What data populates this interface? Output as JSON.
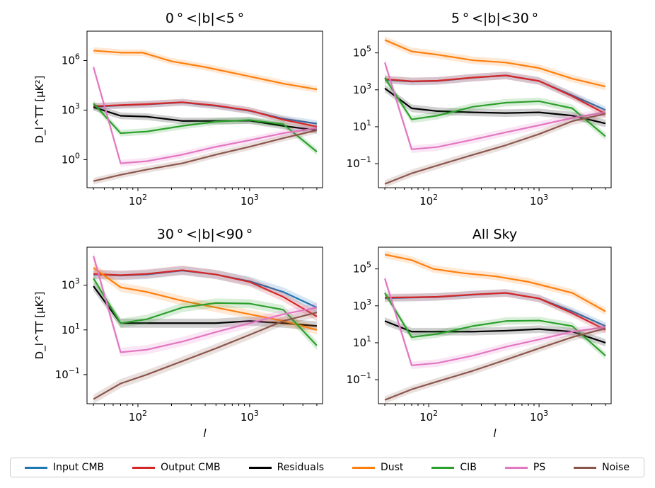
{
  "chart_data": [
    {
      "type": "line",
      "title": "0$^\\circ$<|b|<5$^\\circ$",
      "title_display": "0 ° <|b|<5 °",
      "xlabel": "",
      "ylabel": "D_l^TT [μK²]",
      "xscale": "log",
      "yscale": "log",
      "xlim": [
        35,
        4500
      ],
      "ylim": [
        0.02,
        60000000
      ],
      "xticks": [
        {
          "v": 100,
          "base": "10",
          "exp": "2"
        },
        {
          "v": 1000,
          "base": "10",
          "exp": "3"
        }
      ],
      "yticks": [
        {
          "v": 1,
          "base": "10",
          "exp": "0"
        },
        {
          "v": 1000,
          "base": "10",
          "exp": "3"
        },
        {
          "v": 1000000,
          "base": "10",
          "exp": "6"
        }
      ],
      "series": [
        {
          "name": "Input CMB",
          "x": [
            40,
            70,
            120,
            250,
            500,
            1000,
            2000,
            4000
          ],
          "y": [
            1600,
            1900,
            2200,
            2900,
            1800,
            900,
            300,
            150
          ]
        },
        {
          "name": "Output CMB",
          "x": [
            40,
            70,
            120,
            250,
            500,
            1000,
            2000,
            4000
          ],
          "y": [
            1700,
            2000,
            2300,
            3000,
            1900,
            950,
            260,
            100
          ]
        },
        {
          "name": "Residuals",
          "x": [
            40,
            70,
            120,
            250,
            500,
            1000,
            2000,
            4000
          ],
          "y": [
            1500,
            450,
            400,
            220,
            220,
            230,
            110,
            60
          ]
        },
        {
          "name": "Dust",
          "x": [
            40,
            70,
            110,
            200,
            400,
            800,
            2000,
            4000
          ],
          "y": [
            4000000,
            3000000,
            3000000,
            900000,
            400000,
            150000,
            40000,
            18000
          ]
        },
        {
          "name": "CIB",
          "x": [
            40,
            70,
            120,
            250,
            500,
            1000,
            2000,
            4000
          ],
          "y": [
            2500,
            40,
            50,
            110,
            200,
            250,
            140,
            3
          ]
        },
        {
          "name": "PS",
          "x": [
            40,
            70,
            120,
            250,
            500,
            1000,
            2000,
            4000
          ],
          "y": [
            400000,
            0.6,
            0.8,
            2,
            6,
            15,
            40,
            80
          ]
        },
        {
          "name": "Noise",
          "x": [
            40,
            70,
            120,
            250,
            500,
            1000,
            2000,
            4000
          ],
          "y": [
            0.05,
            0.12,
            0.25,
            0.6,
            2,
            6,
            20,
            60
          ]
        }
      ]
    },
    {
      "type": "line",
      "title": "5$^\\circ$<|b|<30$^\\circ$",
      "title_display": "5 ° <|b|<30 °",
      "xlabel": "",
      "ylabel": "",
      "xscale": "log",
      "yscale": "log",
      "xlim": [
        35,
        4500
      ],
      "ylim": [
        0.005,
        1500000
      ],
      "xticks": [
        {
          "v": 100,
          "base": "10",
          "exp": "2"
        },
        {
          "v": 1000,
          "base": "10",
          "exp": "3"
        }
      ],
      "yticks": [
        {
          "v": 0.1,
          "base": "10",
          "exp": "−1"
        },
        {
          "v": 10,
          "base": "10",
          "exp": "1"
        },
        {
          "v": 1000,
          "base": "10",
          "exp": "3"
        },
        {
          "v": 100000,
          "base": "10",
          "exp": "5"
        }
      ],
      "series": [
        {
          "name": "Input CMB",
          "x": [
            40,
            70,
            120,
            250,
            500,
            1000,
            2000,
            4000
          ],
          "y": [
            3500,
            2800,
            3000,
            4500,
            6000,
            3000,
            500,
            80
          ]
        },
        {
          "name": "Output CMB",
          "x": [
            40,
            70,
            120,
            250,
            500,
            1000,
            2000,
            4000
          ],
          "y": [
            3800,
            2900,
            3100,
            4600,
            6000,
            3000,
            450,
            50
          ]
        },
        {
          "name": "Residuals",
          "x": [
            40,
            70,
            120,
            250,
            500,
            1000,
            2000,
            4000
          ],
          "y": [
            1200,
            100,
            70,
            60,
            55,
            60,
            40,
            15
          ]
        },
        {
          "name": "Dust",
          "x": [
            40,
            70,
            120,
            250,
            500,
            1000,
            2000,
            4000
          ],
          "y": [
            500000,
            120000,
            80000,
            40000,
            30000,
            15000,
            4000,
            1500
          ]
        },
        {
          "name": "CIB",
          "x": [
            40,
            70,
            120,
            250,
            500,
            1000,
            2000,
            4000
          ],
          "y": [
            4500,
            25,
            40,
            120,
            200,
            240,
            100,
            3
          ]
        },
        {
          "name": "PS",
          "x": [
            40,
            70,
            120,
            250,
            500,
            1000,
            2000,
            4000
          ],
          "y": [
            30000,
            0.6,
            0.8,
            2,
            5,
            12,
            30,
            60
          ]
        },
        {
          "name": "Noise",
          "x": [
            40,
            70,
            120,
            250,
            500,
            1000,
            2000,
            4000
          ],
          "y": [
            0.008,
            0.03,
            0.08,
            0.3,
            1,
            4,
            20,
            50
          ]
        }
      ]
    },
    {
      "type": "line",
      "title": "30$^\\circ$<|b|<90$^\\circ$",
      "title_display": "30 ° <|b|<90 °",
      "xlabel": "l",
      "ylabel": "D_l^TT [μK²]",
      "xscale": "log",
      "yscale": "log",
      "xlim": [
        35,
        4500
      ],
      "ylim": [
        0.005,
        50000
      ],
      "xticks": [
        {
          "v": 100,
          "base": "10",
          "exp": "2"
        },
        {
          "v": 1000,
          "base": "10",
          "exp": "3"
        }
      ],
      "yticks": [
        {
          "v": 0.1,
          "base": "10",
          "exp": "−1"
        },
        {
          "v": 10,
          "base": "10",
          "exp": "1"
        },
        {
          "v": 1000,
          "base": "10",
          "exp": "3"
        }
      ],
      "series": [
        {
          "name": "Input CMB",
          "x": [
            40,
            70,
            120,
            250,
            500,
            1000,
            2000,
            4000
          ],
          "y": [
            3000,
            2700,
            3000,
            4500,
            3000,
            1500,
            500,
            100
          ]
        },
        {
          "name": "Output CMB",
          "x": [
            40,
            70,
            120,
            250,
            500,
            1000,
            2000,
            4000
          ],
          "y": [
            3200,
            2800,
            3200,
            4700,
            3000,
            1400,
            300,
            40
          ]
        },
        {
          "name": "Residuals",
          "x": [
            40,
            70,
            120,
            250,
            500,
            1000,
            2000,
            4000
          ],
          "y": [
            900,
            20,
            20,
            20,
            20,
            25,
            20,
            15
          ]
        },
        {
          "name": "Dust",
          "x": [
            40,
            70,
            120,
            250,
            500,
            1000,
            2000,
            4000
          ],
          "y": [
            6000,
            800,
            500,
            200,
            100,
            50,
            25,
            10
          ]
        },
        {
          "name": "CIB",
          "x": [
            40,
            70,
            120,
            250,
            500,
            1000,
            2000,
            4000
          ],
          "y": [
            2000,
            20,
            30,
            100,
            160,
            150,
            80,
            2
          ]
        },
        {
          "name": "PS",
          "x": [
            40,
            70,
            120,
            250,
            500,
            1000,
            2000,
            4000
          ],
          "y": [
            20000,
            1,
            1.3,
            3,
            8,
            20,
            50,
            100
          ]
        },
        {
          "name": "Noise",
          "x": [
            40,
            70,
            120,
            250,
            500,
            1000,
            2000,
            4000
          ],
          "y": [
            0.008,
            0.04,
            0.1,
            0.4,
            1.5,
            6,
            25,
            60
          ]
        }
      ]
    },
    {
      "type": "line",
      "title": "All Sky",
      "title_display": "All Sky",
      "xlabel": "l",
      "ylabel": "",
      "xscale": "log",
      "yscale": "log",
      "xlim": [
        35,
        4500
      ],
      "ylim": [
        0.005,
        1500000
      ],
      "xticks": [
        {
          "v": 100,
          "base": "10",
          "exp": "2"
        },
        {
          "v": 1000,
          "base": "10",
          "exp": "3"
        }
      ],
      "yticks": [
        {
          "v": 0.1,
          "base": "10",
          "exp": "−1"
        },
        {
          "v": 10,
          "base": "10",
          "exp": "1"
        },
        {
          "v": 1000,
          "base": "10",
          "exp": "3"
        },
        {
          "v": 100000,
          "base": "10",
          "exp": "5"
        }
      ],
      "series": [
        {
          "name": "Input CMB",
          "x": [
            40,
            70,
            120,
            250,
            500,
            1000,
            2000,
            4000
          ],
          "y": [
            2600,
            2800,
            3000,
            4000,
            5000,
            2500,
            500,
            80
          ]
        },
        {
          "name": "Output CMB",
          "x": [
            40,
            70,
            120,
            250,
            500,
            1000,
            2000,
            4000
          ],
          "y": [
            2800,
            2900,
            3100,
            4100,
            5000,
            2500,
            400,
            50
          ]
        },
        {
          "name": "Residuals",
          "x": [
            40,
            70,
            120,
            250,
            500,
            1000,
            2000,
            4000
          ],
          "y": [
            150,
            40,
            40,
            40,
            45,
            55,
            40,
            10
          ]
        },
        {
          "name": "Dust",
          "x": [
            40,
            70,
            110,
            200,
            400,
            800,
            2000,
            4000
          ],
          "y": [
            600000,
            300000,
            100000,
            60000,
            40000,
            20000,
            5000,
            500
          ]
        },
        {
          "name": "CIB",
          "x": [
            40,
            70,
            120,
            250,
            500,
            1000,
            2000,
            4000
          ],
          "y": [
            5000,
            20,
            30,
            80,
            150,
            160,
            80,
            2
          ]
        },
        {
          "name": "PS",
          "x": [
            40,
            70,
            120,
            250,
            500,
            1000,
            2000,
            4000
          ],
          "y": [
            30000,
            0.6,
            0.8,
            2,
            6,
            15,
            40,
            70
          ]
        },
        {
          "name": "Noise",
          "x": [
            40,
            70,
            120,
            250,
            500,
            1000,
            2000,
            4000
          ],
          "y": [
            0.008,
            0.03,
            0.08,
            0.3,
            1.2,
            5,
            20,
            60
          ]
        }
      ]
    }
  ],
  "legend": {
    "items": [
      {
        "label": "Input CMB",
        "color": "#1f77b4"
      },
      {
        "label": "Output CMB",
        "color": "#d62728"
      },
      {
        "label": "Residuals",
        "color": "#000000"
      },
      {
        "label": "Dust",
        "color": "#ff7f0e"
      },
      {
        "label": "CIB",
        "color": "#2ca02c"
      },
      {
        "label": "PS",
        "color": "#e377c2"
      },
      {
        "label": "Noise",
        "color": "#8c564b"
      }
    ]
  }
}
